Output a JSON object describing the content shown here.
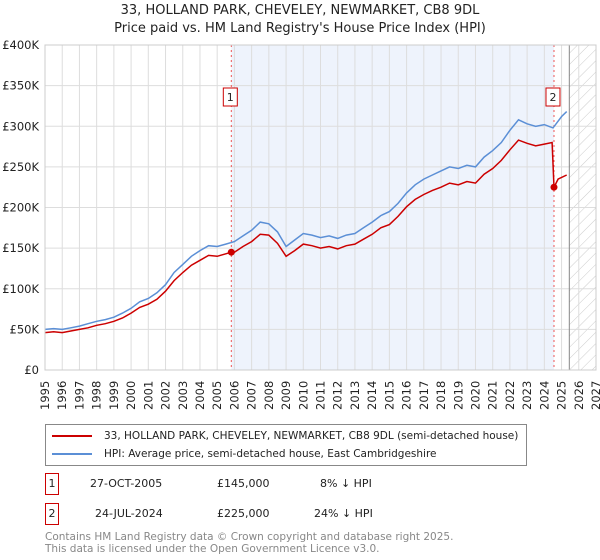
{
  "title": "33, HOLLAND PARK, CHEVELEY, NEWMARKET, CB8 9DL",
  "subtitle": "Price paid vs. HM Land Registry's House Price Index (HPI)",
  "chart_data": {
    "type": "line",
    "title": "33, HOLLAND PARK, CHEVELEY, NEWMARKET, CB8 9DL",
    "subtitle": "Price paid vs. HM Land Registry's House Price Index (HPI)",
    "xlim": [
      1995,
      2027
    ],
    "ylim": [
      0,
      400000
    ],
    "xticks": [
      "1995",
      "1996",
      "1997",
      "1998",
      "1999",
      "2000",
      "2001",
      "2002",
      "2003",
      "2004",
      "2005",
      "2006",
      "2007",
      "2008",
      "2009",
      "2010",
      "2011",
      "2012",
      "2013",
      "2014",
      "2015",
      "2016",
      "2017",
      "2018",
      "2019",
      "2020",
      "2021",
      "2022",
      "2023",
      "2024",
      "2025",
      "2026",
      "2027"
    ],
    "yticks": [
      {
        "v": 0,
        "label": "£0"
      },
      {
        "v": 50000,
        "label": "£50K"
      },
      {
        "v": 100000,
        "label": "£100K"
      },
      {
        "v": 150000,
        "label": "£150K"
      },
      {
        "v": 200000,
        "label": "£200K"
      },
      {
        "v": 250000,
        "label": "£250K"
      },
      {
        "v": 300000,
        "label": "£300K"
      },
      {
        "v": 350000,
        "label": "£350K"
      },
      {
        "v": 400000,
        "label": "£400K"
      }
    ],
    "grid": true,
    "shaded_range": [
      2005.82,
      2024.56
    ],
    "forecast_from": 2025.45,
    "colors": {
      "property": "#cc0000",
      "hpi": "#5b8fd6",
      "shade": "#eef3fc"
    },
    "series": [
      {
        "name": "33, HOLLAND PARK, CHEVELEY, NEWMARKET, CB8 9DL (semi-detached house)",
        "color": "#cc0000",
        "x": [
          1995,
          1995.5,
          1996,
          1996.5,
          1997,
          1997.5,
          1998,
          1998.5,
          1999,
          1999.5,
          2000,
          2000.5,
          2001,
          2001.5,
          2002,
          2002.5,
          2003,
          2003.5,
          2004,
          2004.5,
          2005,
          2005.5,
          2005.82,
          2006,
          2006.5,
          2007,
          2007.5,
          2008,
          2008.5,
          2009,
          2009.5,
          2010,
          2010.5,
          2011,
          2011.5,
          2012,
          2012.5,
          2013,
          2013.5,
          2014,
          2014.5,
          2015,
          2015.5,
          2016,
          2016.5,
          2017,
          2017.5,
          2018,
          2018.5,
          2019,
          2019.5,
          2020,
          2020.5,
          2021,
          2021.5,
          2022,
          2022.5,
          2023,
          2023.5,
          2024,
          2024.45,
          2024.56,
          2024.8,
          2025.3
        ],
        "y": [
          46000,
          47000,
          46000,
          48000,
          50000,
          52000,
          55000,
          57000,
          60000,
          64000,
          70000,
          77000,
          81000,
          87000,
          97000,
          110000,
          120000,
          129000,
          135000,
          141000,
          140000,
          143000,
          145000,
          145000,
          152000,
          158000,
          167000,
          166000,
          156000,
          140000,
          147000,
          155000,
          153000,
          150000,
          152000,
          149000,
          153000,
          155000,
          161000,
          167000,
          175000,
          179000,
          189000,
          201000,
          210000,
          216000,
          221000,
          225000,
          230000,
          228000,
          232000,
          230000,
          241000,
          248000,
          258000,
          271000,
          283000,
          279000,
          276000,
          278000,
          280000,
          225000,
          235000,
          240000
        ]
      },
      {
        "name": "HPI: Average price, semi-detached house, East Cambridgeshire",
        "color": "#5b8fd6",
        "x": [
          1995,
          1995.5,
          1996,
          1996.5,
          1997,
          1997.5,
          1998,
          1998.5,
          1999,
          1999.5,
          2000,
          2000.5,
          2001,
          2001.5,
          2002,
          2002.5,
          2003,
          2003.5,
          2004,
          2004.5,
          2005,
          2005.5,
          2006,
          2006.5,
          2007,
          2007.5,
          2008,
          2008.5,
          2009,
          2009.5,
          2010,
          2010.5,
          2011,
          2011.5,
          2012,
          2012.5,
          2013,
          2013.5,
          2014,
          2014.5,
          2015,
          2015.5,
          2016,
          2016.5,
          2017,
          2017.5,
          2018,
          2018.5,
          2019,
          2019.5,
          2020,
          2020.5,
          2021,
          2021.5,
          2022,
          2022.5,
          2023,
          2023.5,
          2024,
          2024.5,
          2025,
          2025.3
        ],
        "y": [
          50000,
          51000,
          50000,
          52000,
          54000,
          57000,
          60000,
          62000,
          65000,
          70000,
          76000,
          84000,
          88000,
          95000,
          105000,
          120000,
          130000,
          140000,
          147000,
          153000,
          152000,
          155000,
          158000,
          165000,
          172000,
          182000,
          180000,
          170000,
          152000,
          160000,
          168000,
          166000,
          163000,
          165000,
          162000,
          166000,
          168000,
          175000,
          182000,
          190000,
          195000,
          205000,
          218000,
          228000,
          235000,
          240000,
          245000,
          250000,
          248000,
          252000,
          250000,
          262000,
          270000,
          280000,
          295000,
          308000,
          303000,
          300000,
          302000,
          298000,
          312000,
          318000
        ]
      }
    ],
    "sales": [
      {
        "label": "1",
        "x": 2005.82,
        "y": 145000
      },
      {
        "label": "2",
        "x": 2024.56,
        "y": 225000
      }
    ]
  },
  "legend": {
    "property": "33, HOLLAND PARK, CHEVELEY, NEWMARKET, CB8 9DL (semi-detached house)",
    "hpi": "HPI: Average price, semi-detached house, East Cambridgeshire"
  },
  "transactions": [
    {
      "num": "1",
      "date": "27-OCT-2005",
      "price": "£145,000",
      "diff": "8% ↓ HPI"
    },
    {
      "num": "2",
      "date": "24-JUL-2024",
      "price": "£225,000",
      "diff": "24% ↓ HPI"
    }
  ],
  "footer": {
    "line1": "Contains HM Land Registry data © Crown copyright and database right 2025.",
    "line2": "This data is licensed under the Open Government Licence v3.0."
  }
}
